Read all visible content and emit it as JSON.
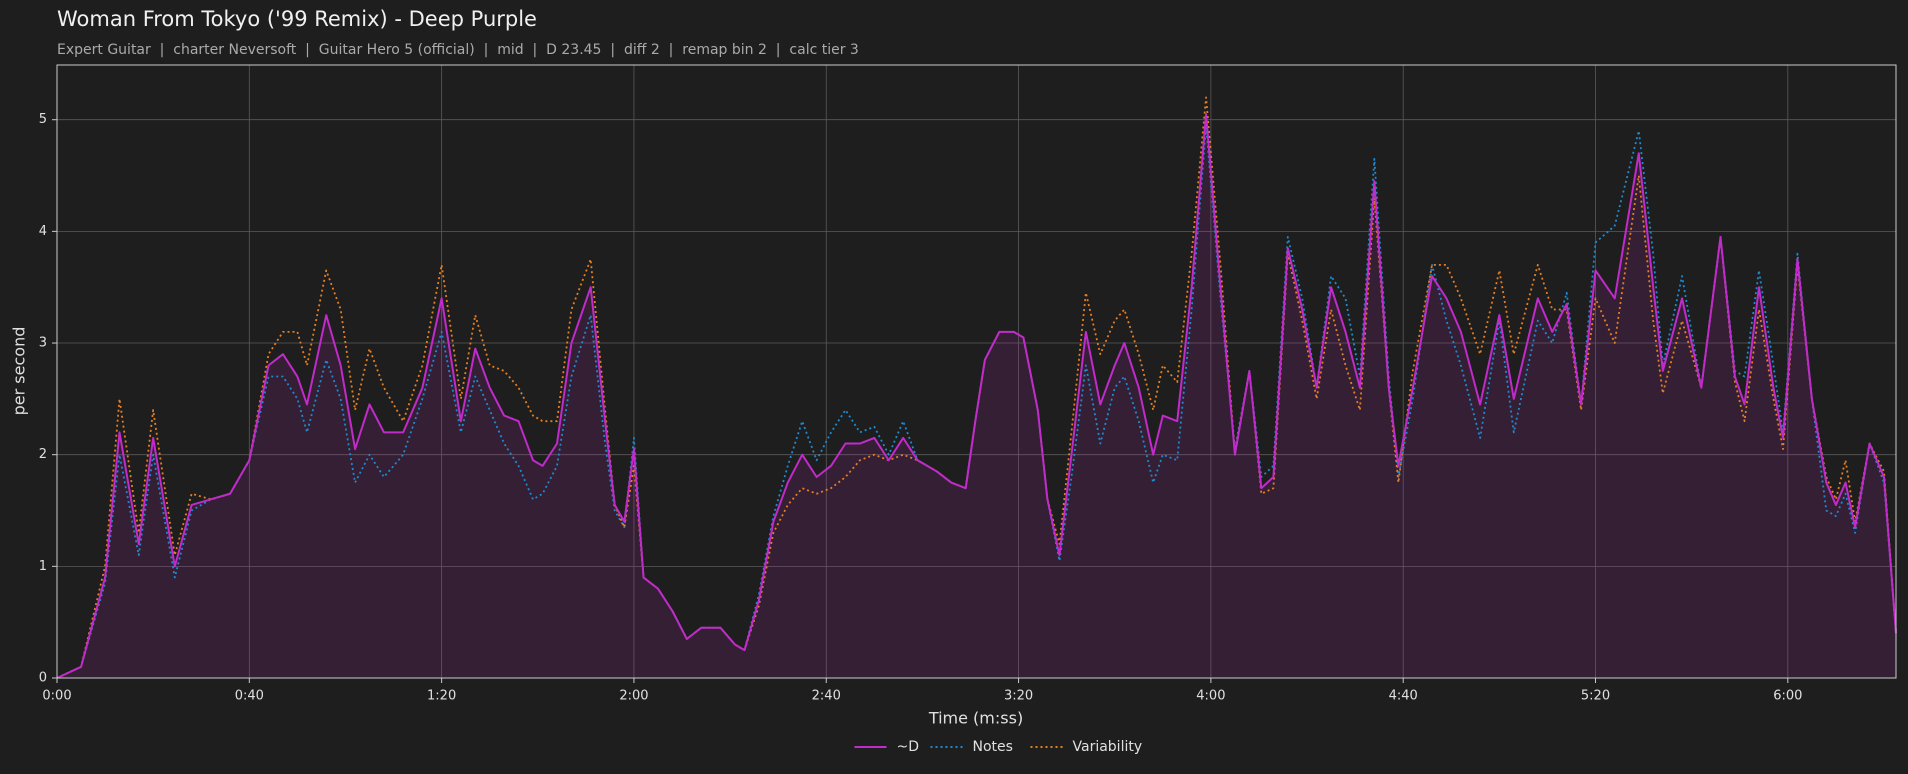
{
  "chart_data": {
    "type": "line",
    "title": "Woman From Tokyo ('99 Remix) - Deep Purple",
    "subtitle": "Expert Guitar  |  charter Neversoft  |  Guitar Hero 5 (official)  |  mid  |  D 23.45  |  diff 2  |  remap bin 2  |  calc tier 3",
    "xlabel": "Time (m:ss)",
    "ylabel": "per second",
    "x": [
      0,
      5,
      10,
      13,
      17,
      20,
      24.5,
      28,
      32,
      36,
      40,
      44,
      47,
      50,
      52,
      56,
      59,
      62,
      65,
      68,
      72,
      76,
      80,
      84,
      87,
      90,
      93,
      96,
      99,
      101,
      104,
      107,
      111,
      114,
      116,
      118,
      120,
      122,
      125,
      128,
      131,
      134,
      138,
      141,
      143,
      146,
      149,
      152,
      155,
      158,
      161,
      164,
      167,
      170,
      173,
      176,
      179,
      183,
      186,
      189,
      191,
      193,
      196,
      199,
      201,
      204,
      206,
      208.5,
      211,
      214,
      217,
      220,
      222,
      225,
      228,
      230,
      233,
      236,
      239,
      242,
      245,
      248,
      250.5,
      253,
      256,
      259,
      262,
      265,
      268,
      271,
      274,
      277,
      279,
      282,
      286,
      289,
      292,
      296,
      300,
      303,
      308,
      311,
      314,
      317,
      320,
      324,
      329,
      332,
      334,
      338,
      342,
      346,
      349,
      351,
      354,
      357,
      359,
      362,
      365,
      368,
      370,
      372,
      374,
      377,
      380,
      382.5
    ],
    "series": [
      {
        "name": "~D",
        "color": "#c02bc9",
        "dash": false,
        "values": [
          0,
          0.1,
          0.9,
          2.2,
          1.2,
          2.15,
          1.0,
          1.55,
          1.6,
          1.65,
          1.95,
          2.8,
          2.9,
          2.7,
          2.45,
          3.25,
          2.8,
          2.05,
          2.45,
          2.2,
          2.2,
          2.6,
          3.4,
          2.3,
          2.95,
          2.6,
          2.35,
          2.3,
          1.95,
          1.9,
          2.1,
          3.0,
          3.5,
          2.3,
          1.55,
          1.4,
          2.05,
          0.9,
          0.8,
          0.6,
          0.35,
          0.45,
          0.45,
          0.3,
          0.25,
          0.7,
          1.4,
          1.75,
          2.0,
          1.8,
          1.9,
          2.1,
          2.1,
          2.15,
          1.95,
          2.15,
          1.95,
          1.85,
          1.75,
          1.7,
          2.3,
          2.85,
          3.1,
          3.1,
          3.05,
          2.4,
          1.6,
          1.1,
          2.0,
          3.1,
          2.45,
          2.8,
          3.0,
          2.6,
          2.0,
          2.35,
          2.3,
          3.5,
          5.05,
          3.5,
          2.0,
          2.75,
          1.7,
          1.8,
          3.85,
          3.3,
          2.6,
          3.5,
          3.1,
          2.6,
          4.45,
          2.6,
          1.9,
          2.6,
          3.6,
          3.4,
          3.1,
          2.45,
          3.25,
          2.5,
          3.4,
          3.1,
          3.35,
          2.45,
          3.65,
          3.4,
          4.7,
          3.5,
          2.75,
          3.4,
          2.6,
          3.95,
          2.7,
          2.45,
          3.5,
          2.6,
          2.15,
          3.75,
          2.5,
          1.75,
          1.55,
          1.75,
          1.35,
          2.1,
          1.8,
          0.4
        ]
      },
      {
        "name": "Notes",
        "color": "#1f8ad0",
        "dash": true,
        "values": [
          0,
          0.1,
          0.85,
          2.0,
          1.1,
          2.0,
          0.9,
          1.5,
          1.6,
          1.65,
          1.95,
          2.7,
          2.7,
          2.5,
          2.2,
          2.85,
          2.5,
          1.75,
          2.0,
          1.8,
          2.0,
          2.5,
          3.1,
          2.2,
          2.7,
          2.4,
          2.1,
          1.9,
          1.6,
          1.65,
          1.9,
          2.7,
          3.25,
          2.1,
          1.5,
          1.35,
          2.15,
          0.9,
          0.8,
          0.6,
          0.35,
          0.45,
          0.45,
          0.3,
          0.25,
          0.75,
          1.45,
          1.9,
          2.3,
          1.95,
          2.2,
          2.4,
          2.2,
          2.25,
          2.0,
          2.3,
          1.95,
          1.85,
          1.75,
          1.7,
          2.3,
          2.85,
          3.1,
          3.1,
          3.05,
          2.4,
          1.6,
          1.05,
          1.8,
          2.8,
          2.1,
          2.6,
          2.7,
          2.3,
          1.75,
          2.0,
          1.95,
          3.3,
          4.95,
          3.4,
          2.05,
          2.75,
          1.8,
          1.9,
          3.95,
          3.4,
          2.6,
          3.6,
          3.4,
          2.7,
          4.65,
          2.7,
          1.8,
          2.5,
          3.7,
          3.2,
          2.8,
          2.15,
          3.2,
          2.2,
          3.2,
          3.0,
          3.45,
          2.45,
          3.9,
          4.05,
          4.9,
          3.8,
          2.8,
          3.6,
          2.6,
          3.95,
          2.75,
          2.7,
          3.65,
          2.8,
          2.2,
          3.8,
          2.5,
          1.5,
          1.45,
          1.65,
          1.3,
          2.1,
          1.75,
          0.4
        ]
      },
      {
        "name": "Variability",
        "color": "#e67e22",
        "dash": true,
        "values": [
          0,
          0.1,
          1.0,
          2.5,
          1.3,
          2.4,
          1.1,
          1.65,
          1.6,
          1.65,
          1.95,
          2.9,
          3.1,
          3.1,
          2.8,
          3.65,
          3.3,
          2.4,
          2.95,
          2.6,
          2.3,
          2.8,
          3.7,
          2.5,
          3.25,
          2.8,
          2.75,
          2.6,
          2.35,
          2.3,
          2.3,
          3.3,
          3.75,
          2.4,
          1.55,
          1.35,
          1.9,
          0.9,
          0.8,
          0.6,
          0.35,
          0.45,
          0.45,
          0.3,
          0.25,
          0.65,
          1.3,
          1.55,
          1.7,
          1.65,
          1.7,
          1.8,
          1.95,
          2.0,
          1.95,
          2.0,
          1.95,
          1.85,
          1.75,
          1.7,
          2.3,
          2.85,
          3.1,
          3.1,
          3.05,
          2.4,
          1.6,
          1.2,
          2.2,
          3.45,
          2.9,
          3.2,
          3.3,
          2.9,
          2.4,
          2.8,
          2.65,
          3.8,
          5.2,
          3.7,
          2.0,
          2.75,
          1.65,
          1.7,
          3.8,
          3.2,
          2.5,
          3.3,
          2.8,
          2.4,
          4.3,
          2.6,
          1.75,
          2.75,
          3.7,
          3.7,
          3.4,
          2.9,
          3.65,
          2.9,
          3.7,
          3.3,
          3.3,
          2.4,
          3.4,
          3.0,
          4.5,
          3.2,
          2.55,
          3.2,
          2.6,
          3.95,
          2.65,
          2.3,
          3.3,
          2.5,
          2.05,
          3.7,
          2.5,
          1.8,
          1.6,
          1.95,
          1.4,
          2.1,
          1.85,
          0.4
        ]
      }
    ],
    "xlim": [
      0,
      382.5
    ],
    "ylim": [
      0,
      5.49
    ],
    "xticks": [
      {
        "value": 0,
        "label": "0:00"
      },
      {
        "value": 40,
        "label": "0:40"
      },
      {
        "value": 80,
        "label": "1:20"
      },
      {
        "value": 120,
        "label": "2:00"
      },
      {
        "value": 160,
        "label": "2:40"
      },
      {
        "value": 200,
        "label": "3:20"
      },
      {
        "value": 240,
        "label": "4:00"
      },
      {
        "value": 280,
        "label": "4:40"
      },
      {
        "value": 320,
        "label": "5:20"
      },
      {
        "value": 360,
        "label": "6:00"
      }
    ],
    "yticks": [
      0,
      1,
      2,
      3,
      4,
      5
    ],
    "grid": true,
    "fill_series": 0,
    "legend": "bottom"
  }
}
